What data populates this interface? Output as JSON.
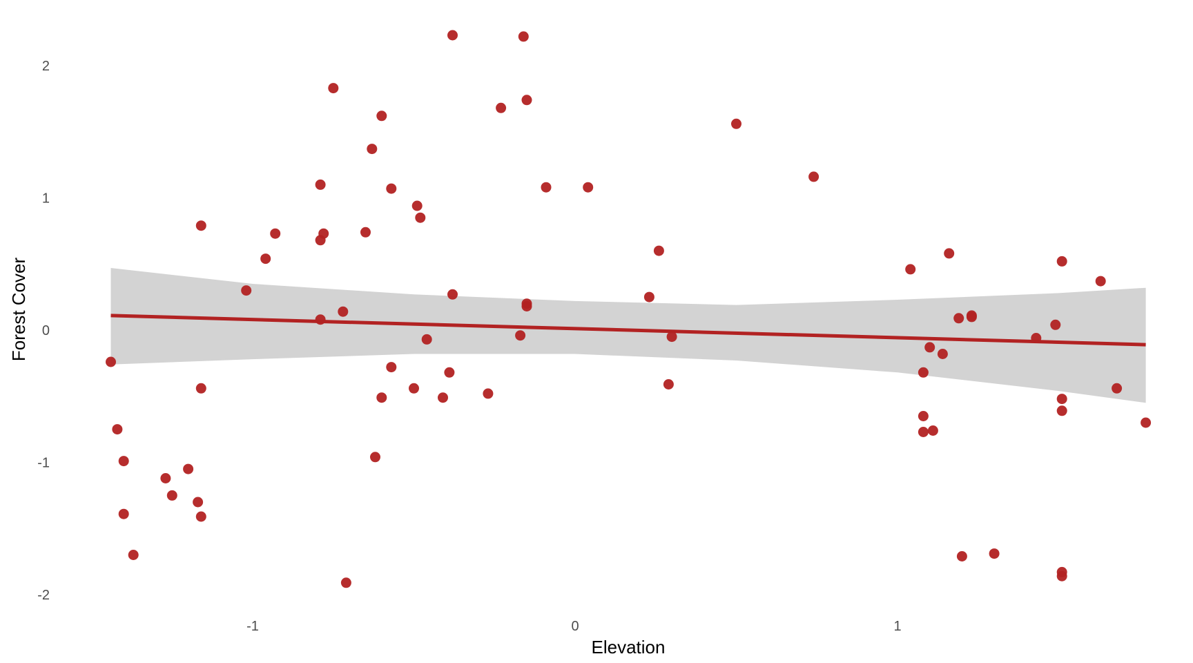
{
  "chart_data": {
    "type": "scatter",
    "title": "",
    "xlabel": "Elevation",
    "ylabel": "Forest Cover",
    "xlim": [
      -1.95,
      1.85
    ],
    "ylim": [
      -2.1,
      2.3
    ],
    "x_ticks": [
      -1,
      0,
      1
    ],
    "x_tick_labels": [
      "-1",
      "0",
      "1"
    ],
    "y_ticks": [
      -2,
      -1,
      0,
      1,
      2
    ],
    "y_tick_labels": [
      "-2",
      "-1",
      "0",
      "1",
      "2"
    ],
    "grid": false,
    "legend": "none",
    "point_color": "#B22222",
    "band_color": "#D3D3D3",
    "line_color": "#B22222",
    "series": [
      {
        "values": [
          [
            -1.44,
            -0.24
          ],
          [
            -1.42,
            -0.75
          ],
          [
            -1.4,
            -0.99
          ],
          [
            -1.4,
            -1.39
          ],
          [
            -1.37,
            -1.7
          ],
          [
            -1.27,
            -1.12
          ],
          [
            -1.25,
            -1.25
          ],
          [
            -1.2,
            -1.05
          ],
          [
            -1.17,
            -1.3
          ],
          [
            -1.16,
            -1.41
          ],
          [
            -1.16,
            -0.44
          ],
          [
            -1.16,
            0.79
          ],
          [
            -1.02,
            0.3
          ],
          [
            -0.96,
            0.54
          ],
          [
            -0.93,
            0.73
          ],
          [
            -0.79,
            0.68
          ],
          [
            -0.79,
            0.08
          ],
          [
            -0.79,
            1.1
          ],
          [
            -0.78,
            0.73
          ],
          [
            -0.75,
            1.83
          ],
          [
            -0.72,
            0.14
          ],
          [
            -0.71,
            -1.91
          ],
          [
            -0.65,
            0.74
          ],
          [
            -0.63,
            1.37
          ],
          [
            -0.62,
            -0.96
          ],
          [
            -0.6,
            1.62
          ],
          [
            -0.6,
            -0.51
          ],
          [
            -0.57,
            -0.28
          ],
          [
            -0.57,
            1.07
          ],
          [
            -0.5,
            -0.44
          ],
          [
            -0.49,
            0.94
          ],
          [
            -0.48,
            0.85
          ],
          [
            -0.46,
            -0.07
          ],
          [
            -0.41,
            -0.51
          ],
          [
            -0.39,
            -0.32
          ],
          [
            -0.38,
            0.27
          ],
          [
            -0.38,
            2.23
          ],
          [
            -0.27,
            -0.48
          ],
          [
            -0.23,
            1.68
          ],
          [
            -0.17,
            -0.04
          ],
          [
            -0.16,
            2.22
          ],
          [
            -0.15,
            1.74
          ],
          [
            -0.15,
            0.2
          ],
          [
            -0.15,
            0.18
          ],
          [
            -0.09,
            1.08
          ],
          [
            0.04,
            1.08
          ],
          [
            0.23,
            0.25
          ],
          [
            0.26,
            0.6
          ],
          [
            0.29,
            -0.41
          ],
          [
            0.3,
            -0.05
          ],
          [
            0.5,
            1.56
          ],
          [
            0.74,
            1.16
          ],
          [
            1.04,
            0.46
          ],
          [
            1.08,
            -0.32
          ],
          [
            1.08,
            -0.65
          ],
          [
            1.08,
            -0.77
          ],
          [
            1.1,
            -0.13
          ],
          [
            1.11,
            -0.76
          ],
          [
            1.14,
            -0.18
          ],
          [
            1.16,
            0.58
          ],
          [
            1.19,
            0.09
          ],
          [
            1.2,
            -1.71
          ],
          [
            1.23,
            0.1
          ],
          [
            1.23,
            0.11
          ],
          [
            1.3,
            -1.69
          ],
          [
            1.43,
            -0.06
          ],
          [
            1.49,
            0.04
          ],
          [
            1.51,
            0.52
          ],
          [
            1.51,
            -0.52
          ],
          [
            1.51,
            -0.61
          ],
          [
            1.51,
            -1.83
          ],
          [
            1.51,
            -1.86
          ],
          [
            1.63,
            0.37
          ],
          [
            1.68,
            -0.44
          ],
          [
            1.77,
            -0.7
          ]
        ]
      }
    ],
    "trend": {
      "x": [
        -1.44,
        1.77
      ],
      "y": [
        0.11,
        -0.11
      ]
    },
    "confidence_band": {
      "x": [
        -1.44,
        -1.0,
        -0.5,
        0.0,
        0.5,
        1.0,
        1.5,
        1.77
      ],
      "upper": [
        0.47,
        0.35,
        0.27,
        0.22,
        0.19,
        0.23,
        0.28,
        0.32
      ],
      "lower": [
        -0.26,
        -0.22,
        -0.18,
        -0.18,
        -0.23,
        -0.32,
        -0.46,
        -0.55
      ]
    }
  }
}
